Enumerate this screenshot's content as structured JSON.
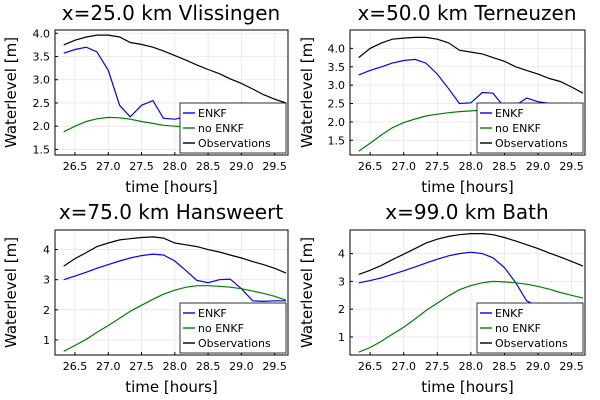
{
  "chart_data": [
    {
      "type": "line",
      "title": "x=25.0 km Vlissingen",
      "xlabel": "time [hours]",
      "ylabel": "Waterlevel [m]",
      "xlim": [
        26.2,
        29.7
      ],
      "ylim": [
        1.38,
        4.07
      ],
      "xticks": [
        26.5,
        27.0,
        27.5,
        28.0,
        28.5,
        29.0,
        29.5
      ],
      "xticklabels": [
        "26.5",
        "27.0",
        "27.5",
        "28.0",
        "28.5",
        "29.0",
        "29.5"
      ],
      "yticks": [
        1.5,
        2.0,
        2.5,
        3.0,
        3.5,
        4.0
      ],
      "yticklabels": [
        "1.5",
        "2.0",
        "2.5",
        "3.0",
        "3.5",
        "4.0"
      ],
      "grid": true,
      "legend": "bottom-right",
      "series": [
        {
          "name": "ENKF",
          "color": "#0000ff",
          "x": [
            26.33,
            26.5,
            26.67,
            26.83,
            27.0,
            27.17,
            27.33,
            27.5,
            27.67,
            27.83,
            28.0,
            28.17,
            28.33,
            28.5,
            28.67,
            28.83,
            29.0,
            29.17,
            29.33,
            29.5,
            29.67
          ],
          "y": [
            3.57,
            3.65,
            3.7,
            3.6,
            3.2,
            2.45,
            2.2,
            2.45,
            2.55,
            2.17,
            2.15,
            2.2,
            2.3,
            2.25,
            2.4,
            2.45,
            2.5,
            2.48,
            2.45,
            2.47,
            2.48
          ]
        },
        {
          "name": "no ENKF",
          "color": "#008000",
          "x": [
            26.33,
            26.5,
            26.67,
            26.83,
            27.0,
            27.17,
            27.33,
            27.5,
            27.67,
            27.83,
            28.0,
            28.17,
            28.33,
            28.5,
            28.67,
            28.83,
            29.0,
            29.17,
            29.33,
            29.5,
            29.67
          ],
          "y": [
            1.88,
            2.0,
            2.1,
            2.16,
            2.19,
            2.18,
            2.15,
            2.1,
            2.06,
            2.02,
            2.0,
            1.98,
            1.97,
            1.98,
            2.0,
            2.03,
            2.06,
            2.1,
            2.14,
            2.18,
            2.22
          ]
        },
        {
          "name": "Observations",
          "color": "#000000",
          "x": [
            26.33,
            26.5,
            26.67,
            26.83,
            27.0,
            27.17,
            27.33,
            27.5,
            27.67,
            27.83,
            28.0,
            28.17,
            28.33,
            28.5,
            28.67,
            28.83,
            29.0,
            29.17,
            29.33,
            29.5,
            29.67
          ],
          "y": [
            3.75,
            3.85,
            3.92,
            3.96,
            3.96,
            3.92,
            3.8,
            3.76,
            3.7,
            3.62,
            3.52,
            3.42,
            3.32,
            3.22,
            3.13,
            3.02,
            2.92,
            2.8,
            2.68,
            2.58,
            2.5
          ]
        }
      ]
    },
    {
      "type": "line",
      "title": "x=50.0 km Terneuzen",
      "xlabel": "time [hours]",
      "ylabel": "Waterlevel [m]",
      "xlim": [
        26.2,
        29.7
      ],
      "ylim": [
        1.1,
        4.5
      ],
      "xticks": [
        26.5,
        27.0,
        27.5,
        28.0,
        28.5,
        29.0,
        29.5
      ],
      "xticklabels": [
        "26.5",
        "27.0",
        "27.5",
        "28.0",
        "28.5",
        "29.0",
        "29.5"
      ],
      "yticks": [
        1.5,
        2.0,
        2.5,
        3.0,
        3.5,
        4.0
      ],
      "yticklabels": [
        "1.5",
        "2.0",
        "2.5",
        "3.0",
        "3.5",
        "4.0"
      ],
      "grid": true,
      "legend": "bottom-right",
      "series": [
        {
          "name": "ENKF",
          "color": "#0000ff",
          "x": [
            26.33,
            26.5,
            26.67,
            26.83,
            27.0,
            27.17,
            27.33,
            27.5,
            27.67,
            27.83,
            28.0,
            28.17,
            28.33,
            28.5,
            28.67,
            28.83,
            29.0,
            29.17,
            29.33,
            29.5,
            29.67
          ],
          "y": [
            3.28,
            3.4,
            3.5,
            3.6,
            3.67,
            3.7,
            3.6,
            3.3,
            2.9,
            2.5,
            2.52,
            2.8,
            2.78,
            2.4,
            2.45,
            2.65,
            2.55,
            2.5,
            2.48,
            2.45,
            2.45
          ]
        },
        {
          "name": "no ENKF",
          "color": "#008000",
          "x": [
            26.33,
            26.5,
            26.67,
            26.83,
            27.0,
            27.17,
            27.33,
            27.5,
            27.67,
            27.83,
            28.0,
            28.17,
            28.33,
            28.5,
            28.67,
            28.83,
            29.0,
            29.17,
            29.33,
            29.5,
            29.67
          ],
          "y": [
            1.2,
            1.42,
            1.65,
            1.84,
            1.98,
            2.08,
            2.16,
            2.21,
            2.25,
            2.28,
            2.3,
            2.32,
            2.33,
            2.3,
            2.26,
            2.2,
            2.13,
            2.05,
            1.97,
            1.88,
            1.8
          ]
        },
        {
          "name": "Observations",
          "color": "#000000",
          "x": [
            26.33,
            26.5,
            26.67,
            26.83,
            27.0,
            27.17,
            27.33,
            27.5,
            27.67,
            27.83,
            28.0,
            28.17,
            28.33,
            28.5,
            28.67,
            28.83,
            29.0,
            29.17,
            29.33,
            29.5,
            29.67
          ],
          "y": [
            3.75,
            4.0,
            4.15,
            4.25,
            4.28,
            4.3,
            4.3,
            4.25,
            4.15,
            3.95,
            3.9,
            3.85,
            3.75,
            3.65,
            3.5,
            3.4,
            3.3,
            3.18,
            3.1,
            2.95,
            2.78
          ]
        }
      ]
    },
    {
      "type": "line",
      "title": "x=75.0 km Hansweert",
      "xlabel": "time [hours]",
      "ylabel": "Waterlevel [m]",
      "xlim": [
        26.2,
        29.7
      ],
      "ylim": [
        0.5,
        4.65
      ],
      "xticks": [
        26.5,
        27.0,
        27.5,
        28.0,
        28.5,
        29.0,
        29.5
      ],
      "xticklabels": [
        "26.5",
        "27.0",
        "27.5",
        "28.0",
        "28.5",
        "29.0",
        "29.5"
      ],
      "yticks": [
        1,
        2,
        3,
        4
      ],
      "yticklabels": [
        "1",
        "2",
        "3",
        "4"
      ],
      "grid": true,
      "legend": "bottom-right",
      "series": [
        {
          "name": "ENKF",
          "color": "#0000ff",
          "x": [
            26.33,
            26.5,
            26.67,
            26.83,
            27.0,
            27.17,
            27.33,
            27.5,
            27.67,
            27.83,
            28.0,
            28.17,
            28.33,
            28.5,
            28.67,
            28.83,
            29.0,
            29.17,
            29.33,
            29.5,
            29.67
          ],
          "y": [
            3.0,
            3.12,
            3.25,
            3.38,
            3.5,
            3.62,
            3.72,
            3.8,
            3.85,
            3.82,
            3.62,
            3.3,
            2.98,
            2.9,
            3.0,
            3.02,
            2.7,
            2.3,
            2.28,
            2.3,
            2.3
          ]
        },
        {
          "name": "no ENKF",
          "color": "#008000",
          "x": [
            26.33,
            26.5,
            26.67,
            26.83,
            27.0,
            27.17,
            27.33,
            27.5,
            27.67,
            27.83,
            28.0,
            28.17,
            28.33,
            28.5,
            28.67,
            28.83,
            29.0,
            29.17,
            29.33,
            29.5,
            29.67
          ],
          "y": [
            0.62,
            0.82,
            1.02,
            1.25,
            1.48,
            1.72,
            1.95,
            2.15,
            2.35,
            2.52,
            2.65,
            2.75,
            2.8,
            2.8,
            2.78,
            2.75,
            2.7,
            2.62,
            2.55,
            2.45,
            2.32
          ]
        },
        {
          "name": "Observations",
          "color": "#000000",
          "x": [
            26.33,
            26.5,
            26.67,
            26.83,
            27.0,
            27.17,
            27.33,
            27.5,
            27.67,
            27.83,
            28.0,
            28.17,
            28.33,
            28.5,
            28.67,
            28.83,
            29.0,
            29.17,
            29.33,
            29.5,
            29.67
          ],
          "y": [
            3.45,
            3.7,
            3.9,
            4.1,
            4.22,
            4.32,
            4.36,
            4.4,
            4.42,
            4.38,
            4.22,
            4.16,
            4.1,
            4.0,
            3.92,
            3.82,
            3.72,
            3.6,
            3.5,
            3.38,
            3.22
          ]
        }
      ]
    },
    {
      "type": "line",
      "title": "x=99.0 km Bath",
      "xlabel": "time [hours]",
      "ylabel": "Waterlevel [m]",
      "xlim": [
        26.2,
        29.7
      ],
      "ylim": [
        0.35,
        4.85
      ],
      "xticks": [
        26.5,
        27.0,
        27.5,
        28.0,
        28.5,
        29.0,
        29.5
      ],
      "xticklabels": [
        "26.5",
        "27.0",
        "27.5",
        "28.0",
        "28.5",
        "29.0",
        "29.5"
      ],
      "yticks": [
        1,
        2,
        3,
        4
      ],
      "yticklabels": [
        "1",
        "2",
        "3",
        "4"
      ],
      "grid": true,
      "legend": "bottom-right",
      "series": [
        {
          "name": "ENKF",
          "color": "#0000ff",
          "x": [
            26.33,
            26.5,
            26.67,
            26.83,
            27.0,
            27.17,
            27.33,
            27.5,
            27.67,
            27.83,
            28.0,
            28.17,
            28.33,
            28.5,
            28.67,
            28.83,
            29.0,
            29.17,
            29.33,
            29.5,
            29.67
          ],
          "y": [
            2.95,
            3.03,
            3.13,
            3.25,
            3.38,
            3.52,
            3.66,
            3.8,
            3.92,
            4.0,
            4.05,
            4.0,
            3.85,
            3.5,
            2.95,
            2.3,
            2.1,
            2.15,
            2.18,
            2.2,
            2.22
          ]
        },
        {
          "name": "no ENKF",
          "color": "#008000",
          "x": [
            26.33,
            26.5,
            26.67,
            26.83,
            27.0,
            27.17,
            27.33,
            27.5,
            27.67,
            27.83,
            28.0,
            28.17,
            28.33,
            28.5,
            28.67,
            28.83,
            29.0,
            29.17,
            29.33,
            29.5,
            29.67
          ],
          "y": [
            0.45,
            0.62,
            0.85,
            1.1,
            1.35,
            1.65,
            1.95,
            2.22,
            2.48,
            2.7,
            2.85,
            2.95,
            3.0,
            2.98,
            2.95,
            2.9,
            2.82,
            2.72,
            2.6,
            2.5,
            2.4
          ]
        },
        {
          "name": "Observations",
          "color": "#000000",
          "x": [
            26.33,
            26.5,
            26.67,
            26.83,
            27.0,
            27.17,
            27.33,
            27.5,
            27.67,
            27.83,
            28.0,
            28.17,
            28.33,
            28.5,
            28.67,
            28.83,
            29.0,
            29.17,
            29.33,
            29.5,
            29.67
          ],
          "y": [
            3.25,
            3.4,
            3.58,
            3.78,
            3.98,
            4.18,
            4.38,
            4.52,
            4.62,
            4.68,
            4.72,
            4.72,
            4.68,
            4.58,
            4.45,
            4.32,
            4.18,
            4.02,
            3.88,
            3.72,
            3.55
          ]
        }
      ]
    }
  ]
}
